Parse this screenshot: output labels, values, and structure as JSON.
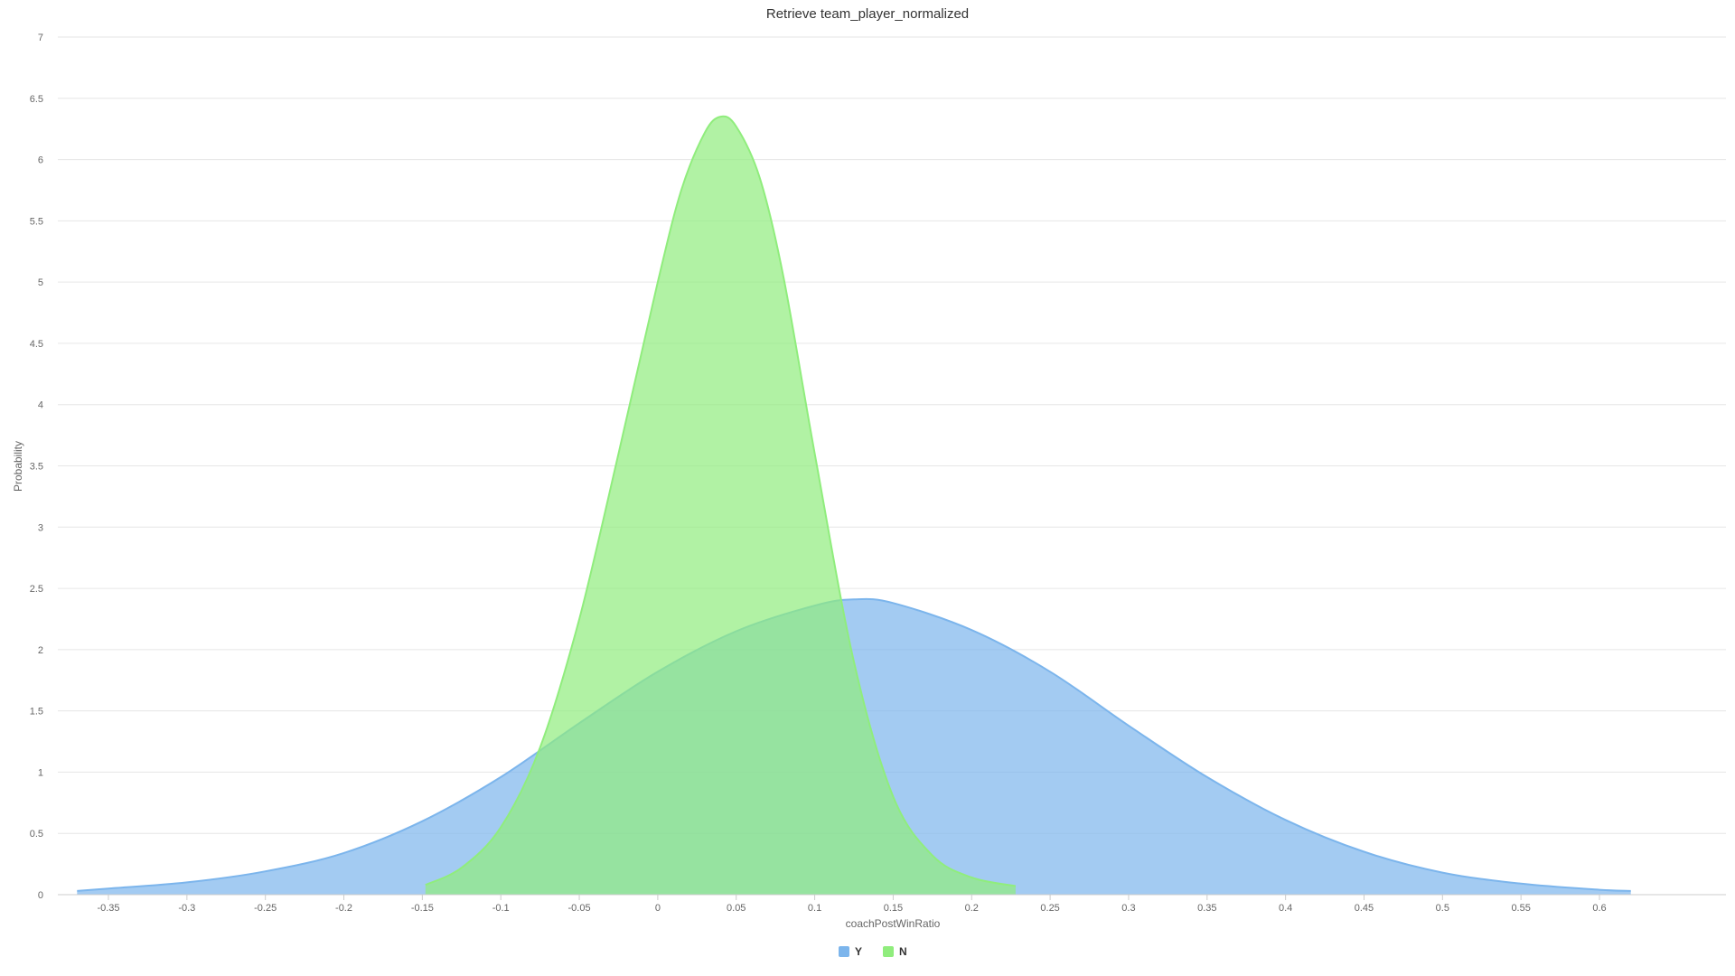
{
  "chart_data": {
    "type": "area",
    "title": "Retrieve team_player_normalized",
    "xlabel": "coachPostWinRatio",
    "ylabel": "Probability",
    "xlim": [
      -0.37,
      0.62
    ],
    "ylim": [
      0,
      7
    ],
    "x_ticks": [
      -0.35,
      -0.3,
      -0.25,
      -0.2,
      -0.15,
      -0.1,
      -0.05,
      0,
      0.05,
      0.1,
      0.15,
      0.2,
      0.25,
      0.3,
      0.35,
      0.4,
      0.45,
      0.5,
      0.55,
      0.6
    ],
    "x_tick_labels": [
      "-0.35",
      "-0.3",
      "-0.25",
      "-0.2",
      "-0.15",
      "-0.1",
      "-0.05",
      "0",
      "0.05",
      "0.1",
      "0.15",
      "0.2",
      "0.25",
      "0.3",
      "0.35",
      "0.4",
      "0.45",
      "0.5",
      "0.55",
      "0.6"
    ],
    "y_ticks": [
      0,
      0.5,
      1,
      1.5,
      2,
      2.5,
      3,
      3.5,
      4,
      4.5,
      5,
      5.5,
      6,
      6.5,
      7
    ],
    "y_tick_labels": [
      "0",
      "0.5",
      "1",
      "1.5",
      "2",
      "2.5",
      "3",
      "3.5",
      "4",
      "4.5",
      "5",
      "5.5",
      "6",
      "6.5",
      "7"
    ],
    "grid": true,
    "legend_position": "bottom-center",
    "series": [
      {
        "name": "Y",
        "color": "#7cb5ec",
        "x": [
          -0.37,
          -0.35,
          -0.3,
          -0.25,
          -0.2,
          -0.15,
          -0.1,
          -0.05,
          0,
          0.05,
          0.1,
          0.125,
          0.15,
          0.2,
          0.25,
          0.3,
          0.35,
          0.4,
          0.45,
          0.5,
          0.55,
          0.6,
          0.62
        ],
        "values": [
          0.03,
          0.05,
          0.1,
          0.19,
          0.34,
          0.6,
          0.96,
          1.4,
          1.82,
          2.15,
          2.36,
          2.41,
          2.38,
          2.16,
          1.82,
          1.38,
          0.96,
          0.61,
          0.35,
          0.18,
          0.09,
          0.04,
          0.03
        ]
      },
      {
        "name": "N",
        "color": "#90ed7d",
        "x": [
          -0.148,
          -0.125,
          -0.1,
          -0.075,
          -0.05,
          -0.025,
          0,
          0.015,
          0.03,
          0.04,
          0.05,
          0.065,
          0.08,
          0.1,
          0.125,
          0.15,
          0.175,
          0.2,
          0.228
        ],
        "values": [
          0.08,
          0.22,
          0.55,
          1.2,
          2.25,
          3.6,
          5.0,
          5.75,
          6.22,
          6.35,
          6.27,
          5.85,
          5.05,
          3.6,
          1.9,
          0.8,
          0.32,
          0.14,
          0.07
        ]
      }
    ]
  }
}
